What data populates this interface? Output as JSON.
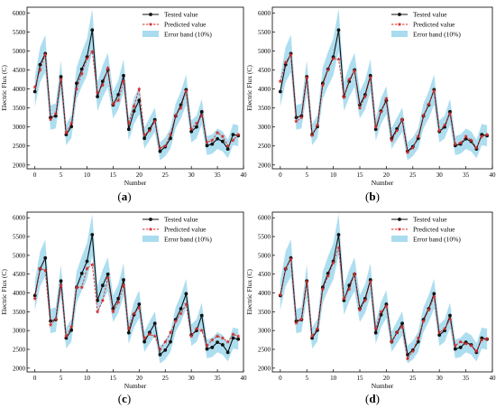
{
  "chart_data": [
    {
      "type": "line",
      "panel_label": "(a)",
      "xlabel": "Number",
      "ylabel": "Electric Flux (C)",
      "xlim": [
        -1.5,
        40
      ],
      "ylim": [
        1900,
        6150
      ],
      "xticks": [
        0,
        5,
        10,
        15,
        20,
        25,
        30,
        35,
        40
      ],
      "yticks": [
        2000,
        2500,
        3000,
        3500,
        4000,
        4500,
        5000,
        5500,
        6000
      ],
      "legend_position": "top-right",
      "band_fraction": 0.1,
      "series": [
        {
          "name": "Tested value",
          "values": [
            3930,
            4640,
            4930,
            3250,
            3290,
            4320,
            2800,
            3010,
            4150,
            4520,
            4840,
            5550,
            3800,
            4200,
            4500,
            3580,
            3850,
            4350,
            2940,
            3420,
            3700,
            2700,
            2950,
            3190,
            2360,
            2480,
            2700,
            3290,
            3580,
            3980,
            2880,
            3000,
            3400,
            2510,
            2550,
            2690,
            2620,
            2420,
            2800,
            2770
          ]
        },
        {
          "name": "Predicted value",
          "values": [
            4050,
            4500,
            4900,
            3200,
            3350,
            4250,
            2850,
            3100,
            4000,
            4400,
            4800,
            4980,
            3900,
            4100,
            4550,
            3600,
            3700,
            4200,
            3100,
            3550,
            4000,
            2800,
            2900,
            3150,
            2450,
            2500,
            2800,
            3300,
            3500,
            3950,
            2950,
            3100,
            3300,
            2600,
            2650,
            2850,
            2750,
            2500,
            2650,
            2800
          ]
        },
        {
          "name": "Error band (10%)"
        }
      ]
    },
    {
      "type": "line",
      "panel_label": "(b)",
      "xlabel": "Number",
      "ylabel": "Electric Flux (C)",
      "xlim": [
        -1.5,
        40
      ],
      "ylim": [
        1900,
        6150
      ],
      "xticks": [
        0,
        5,
        10,
        15,
        20,
        25,
        30,
        35,
        40
      ],
      "yticks": [
        2000,
        2500,
        3000,
        3500,
        4000,
        4500,
        5000,
        5500,
        6000
      ],
      "legend_position": "top-right",
      "band_fraction": 0.1,
      "series": [
        {
          "name": "Tested value",
          "values": [
            3930,
            4640,
            4930,
            3250,
            3290,
            4320,
            2800,
            3010,
            4150,
            4520,
            4840,
            5550,
            3800,
            4200,
            4500,
            3580,
            3850,
            4350,
            2940,
            3420,
            3700,
            2700,
            2950,
            3190,
            2360,
            2480,
            2700,
            3290,
            3580,
            3980,
            2880,
            3000,
            3400,
            2510,
            2550,
            2690,
            2620,
            2420,
            2800,
            2770
          ]
        },
        {
          "name": "Predicted value",
          "values": [
            4200,
            4700,
            4900,
            3150,
            3250,
            4300,
            2780,
            3050,
            4100,
            4500,
            4800,
            4780,
            3780,
            4250,
            4480,
            3500,
            3800,
            4300,
            3000,
            3400,
            3750,
            2650,
            2900,
            3200,
            2330,
            2450,
            2750,
            3300,
            3600,
            3950,
            2900,
            3050,
            3350,
            2550,
            2580,
            2750,
            2650,
            2450,
            2750,
            2800
          ]
        },
        {
          "name": "Error band (10%)"
        }
      ]
    },
    {
      "type": "line",
      "panel_label": "(c)",
      "xlabel": "Number",
      "ylabel": "Electric Flux (C)",
      "xlim": [
        -1.5,
        40
      ],
      "ylim": [
        1900,
        6150
      ],
      "xticks": [
        0,
        5,
        10,
        15,
        20,
        25,
        30,
        35,
        40
      ],
      "yticks": [
        2000,
        2500,
        3000,
        3500,
        4000,
        4500,
        5000,
        5500,
        6000
      ],
      "legend_position": "top-right",
      "band_fraction": 0.1,
      "series": [
        {
          "name": "Tested value",
          "values": [
            3930,
            4640,
            4930,
            3250,
            3290,
            4320,
            2800,
            3010,
            4150,
            4520,
            4840,
            5550,
            3800,
            4200,
            4500,
            3580,
            3850,
            4350,
            2940,
            3420,
            3700,
            2700,
            2950,
            3190,
            2360,
            2480,
            2700,
            3290,
            3580,
            3980,
            2880,
            3000,
            3400,
            2510,
            2550,
            2690,
            2620,
            2420,
            2800,
            2770
          ]
        },
        {
          "name": "Predicted value",
          "values": [
            3850,
            4650,
            4600,
            3150,
            3300,
            4200,
            2850,
            3100,
            4150,
            4150,
            4650,
            4750,
            3500,
            3800,
            4400,
            3500,
            3750,
            4200,
            3050,
            3450,
            3600,
            2800,
            2900,
            2850,
            2500,
            2700,
            2950,
            3250,
            3450,
            3700,
            2850,
            3050,
            3000,
            2600,
            2750,
            2850,
            2800,
            2700,
            2900,
            2850
          ]
        },
        {
          "name": "Error band (10%)"
        }
      ]
    },
    {
      "type": "line",
      "panel_label": "(d)",
      "xlabel": "Number",
      "ylabel": "Electric Flux (C)",
      "xlim": [
        -1.5,
        40
      ],
      "ylim": [
        1900,
        6150
      ],
      "xticks": [
        0,
        5,
        10,
        15,
        20,
        25,
        30,
        35,
        40
      ],
      "yticks": [
        2000,
        2500,
        3000,
        3500,
        4000,
        4500,
        5000,
        5500,
        6000
      ],
      "legend_position": "top-right",
      "band_fraction": 0.1,
      "series": [
        {
          "name": "Tested value",
          "values": [
            3930,
            4640,
            4930,
            3250,
            3290,
            4320,
            2800,
            3010,
            4150,
            4520,
            4840,
            5550,
            3800,
            4200,
            4500,
            3580,
            3850,
            4350,
            2940,
            3420,
            3700,
            2700,
            2950,
            3190,
            2360,
            2480,
            2700,
            3290,
            3580,
            3980,
            2880,
            3000,
            3400,
            2510,
            2550,
            2690,
            2620,
            2420,
            2800,
            2770
          ]
        },
        {
          "name": "Predicted value",
          "values": [
            3950,
            4650,
            4900,
            3200,
            3300,
            4300,
            2850,
            3050,
            4100,
            4450,
            4800,
            5200,
            3850,
            4100,
            4500,
            3550,
            3800,
            4300,
            3050,
            3500,
            3650,
            2700,
            2950,
            3100,
            2250,
            2450,
            2800,
            3250,
            3550,
            3900,
            2950,
            3050,
            3300,
            2600,
            2700,
            2650,
            2600,
            2450,
            2750,
            2780
          ]
        },
        {
          "name": "Error band (10%)"
        }
      ]
    }
  ],
  "colors": {
    "tested": "#111111",
    "predicted": "#d42a2a",
    "band": "#a9dcef",
    "axis": "#000000"
  }
}
